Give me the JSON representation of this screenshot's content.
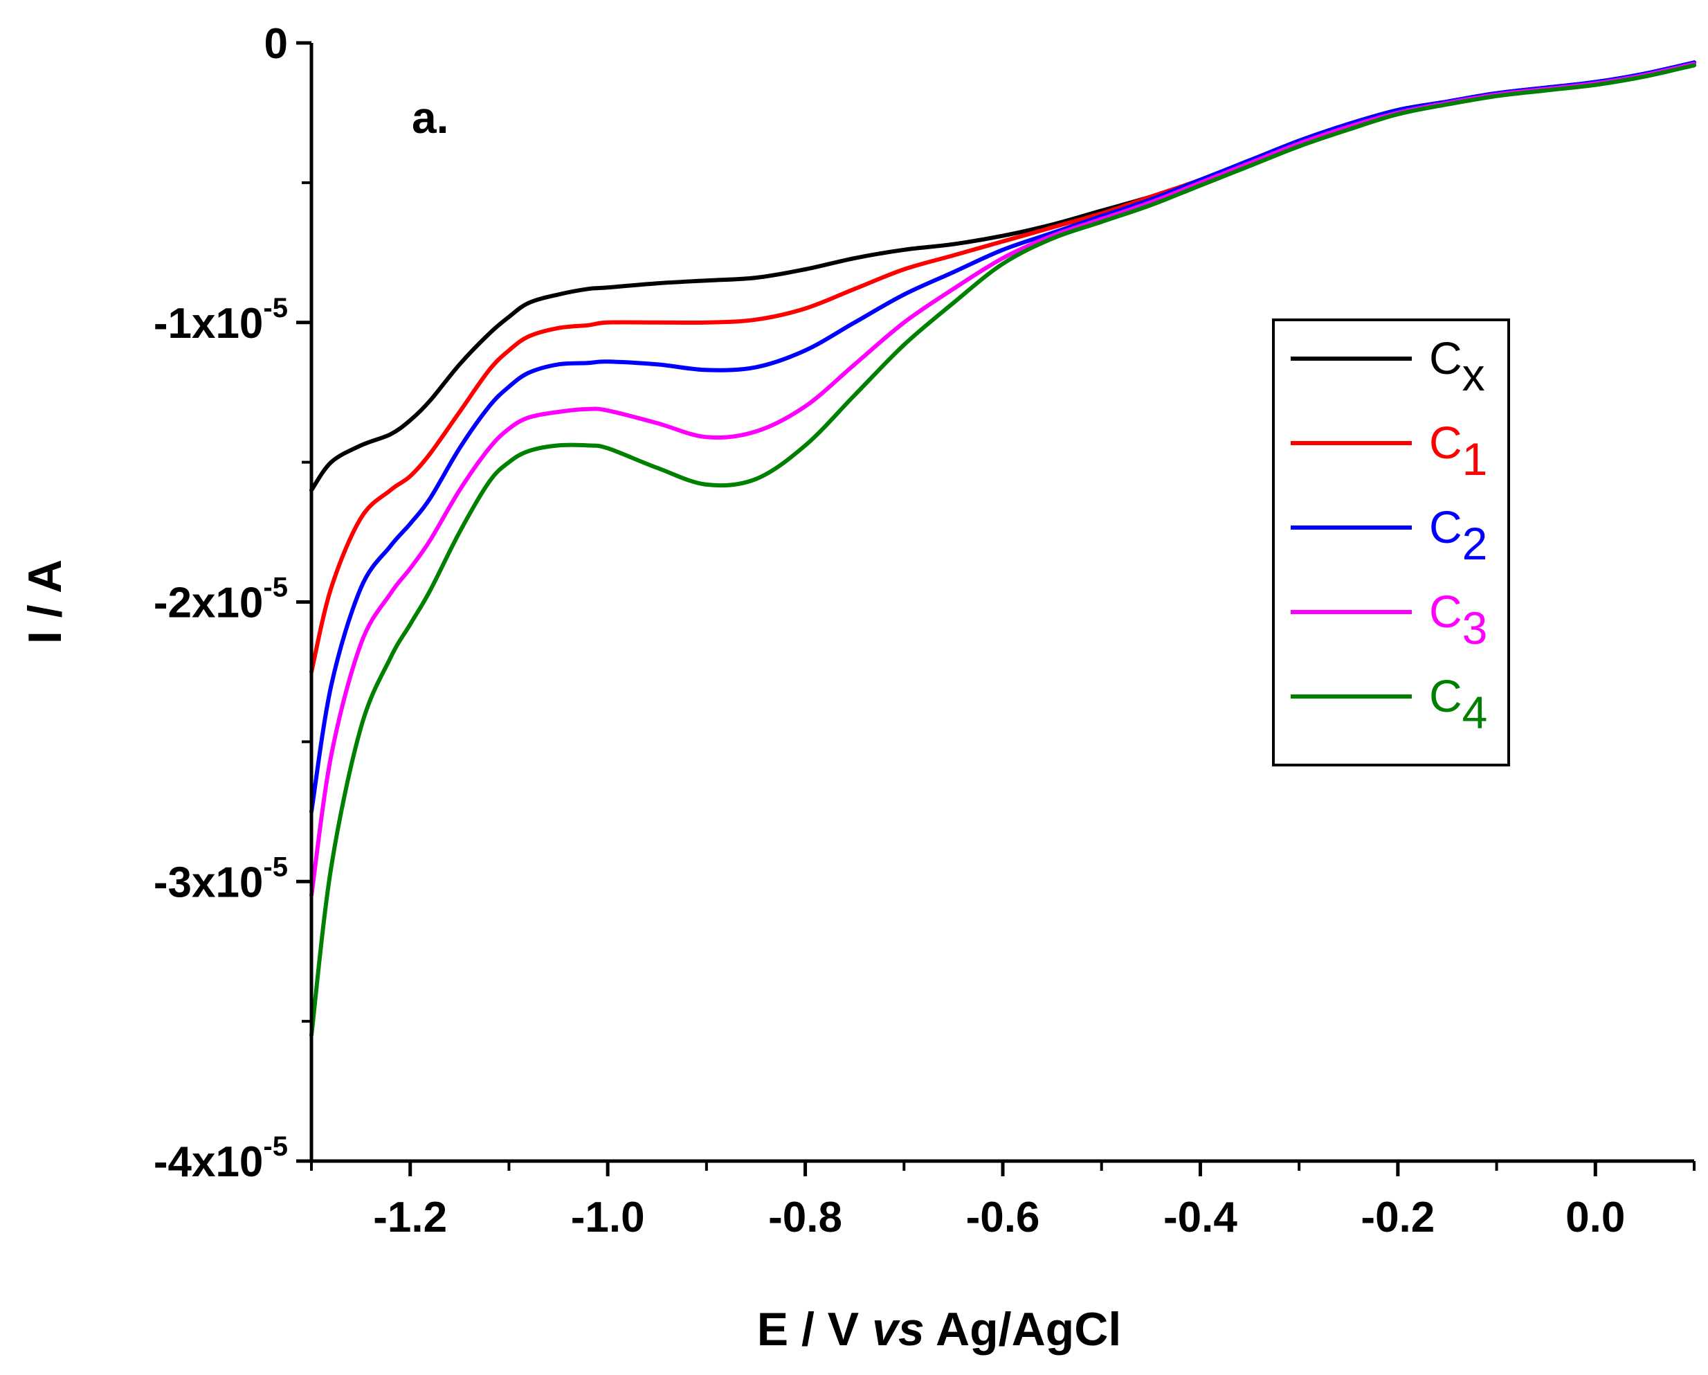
{
  "chart_data": {
    "type": "line",
    "panel_label": "a.",
    "xlabel": {
      "main": "E / V ",
      "italic": "vs",
      "rest": " Ag/AgCl"
    },
    "ylabel": "I / A",
    "xlim": [
      -1.3,
      0.1
    ],
    "ylim": [
      -4e-05,
      0
    ],
    "x_ticks": [
      {
        "value": -1.2,
        "label": "-1.2"
      },
      {
        "value": -1.0,
        "label": "-1.0"
      },
      {
        "value": -0.8,
        "label": "-0.8"
      },
      {
        "value": -0.6,
        "label": "-0.6"
      },
      {
        "value": -0.4,
        "label": "-0.4"
      },
      {
        "value": -0.2,
        "label": "-0.2"
      },
      {
        "value": 0.0,
        "label": "0.0"
      }
    ],
    "x_minor_ticks": [
      -1.3,
      -1.1,
      -0.9,
      -0.7,
      -0.5,
      -0.3,
      -0.1,
      0.1
    ],
    "y_ticks": [
      {
        "value": 0,
        "mantissa": "0",
        "exp": ""
      },
      {
        "value": -1e-05,
        "mantissa": "-1x10",
        "exp": "-5"
      },
      {
        "value": -2e-05,
        "mantissa": "-2x10",
        "exp": "-5"
      },
      {
        "value": -3e-05,
        "mantissa": "-3x10",
        "exp": "-5"
      },
      {
        "value": -4e-05,
        "mantissa": "-4x10",
        "exp": "-5"
      }
    ],
    "y_minor_ticks": [
      -5e-06,
      -1.5e-05,
      -2.5e-05,
      -3.5e-05
    ],
    "legend_position": "right",
    "series": [
      {
        "name": "C",
        "sub": "x",
        "color": "#000000",
        "x": [
          -1.3,
          -1.28,
          -1.25,
          -1.22,
          -1.2,
          -1.18,
          -1.15,
          -1.12,
          -1.1,
          -1.08,
          -1.05,
          -1.02,
          -1.0,
          -0.95,
          -0.9,
          -0.85,
          -0.8,
          -0.75,
          -0.7,
          -0.65,
          -0.6,
          -0.55,
          -0.5,
          -0.45,
          -0.4,
          -0.35,
          -0.3,
          -0.25,
          -0.2,
          -0.15,
          -0.1,
          -0.05,
          0.0,
          0.05,
          0.1
        ],
        "y": [
          -1.6e-05,
          -1.5e-05,
          -1.44e-05,
          -1.4e-05,
          -1.35e-05,
          -1.28e-05,
          -1.15e-05,
          -1.04e-05,
          -9.8e-06,
          -9.3e-06,
          -9e-06,
          -8.8e-06,
          -8.75e-06,
          -8.6e-06,
          -8.5e-06,
          -8.4e-06,
          -8.1e-06,
          -7.7e-06,
          -7.4e-06,
          -7.2e-06,
          -6.9e-06,
          -6.5e-06,
          -6e-06,
          -5.5e-06,
          -4.9e-06,
          -4.2e-06,
          -3.5e-06,
          -2.9e-06,
          -2.4e-06,
          -2.1e-06,
          -1.8e-06,
          -1.6e-06,
          -1.4e-06,
          -1.1e-06,
          -7e-07
        ]
      },
      {
        "name": "C",
        "sub": "1",
        "color": "#ff0000",
        "x": [
          -1.3,
          -1.28,
          -1.25,
          -1.22,
          -1.2,
          -1.18,
          -1.15,
          -1.12,
          -1.1,
          -1.08,
          -1.05,
          -1.02,
          -1.0,
          -0.95,
          -0.9,
          -0.85,
          -0.8,
          -0.75,
          -0.7,
          -0.65,
          -0.6,
          -0.55,
          -0.5,
          -0.45,
          -0.4,
          -0.35,
          -0.3,
          -0.25,
          -0.2,
          -0.15,
          -0.1,
          -0.05,
          0.0,
          0.05,
          0.1
        ],
        "y": [
          -2.25e-05,
          -1.95e-05,
          -1.7e-05,
          -1.6e-05,
          -1.55e-05,
          -1.47e-05,
          -1.32e-05,
          -1.17e-05,
          -1.1e-05,
          -1.05e-05,
          -1.02e-05,
          -1.01e-05,
          -1e-05,
          -1e-05,
          -1e-05,
          -9.9e-06,
          -9.5e-06,
          -8.8e-06,
          -8.1e-06,
          -7.6e-06,
          -7.1e-06,
          -6.6e-06,
          -6.1e-06,
          -5.5e-06,
          -4.9e-06,
          -4.2e-06,
          -3.5e-06,
          -2.9e-06,
          -2.4e-06,
          -2.1e-06,
          -1.8e-06,
          -1.6e-06,
          -1.4e-06,
          -1.1e-06,
          -7e-07
        ]
      },
      {
        "name": "C",
        "sub": "2",
        "color": "#0000ff",
        "x": [
          -1.3,
          -1.28,
          -1.25,
          -1.22,
          -1.2,
          -1.18,
          -1.15,
          -1.12,
          -1.1,
          -1.08,
          -1.05,
          -1.02,
          -1.0,
          -0.95,
          -0.9,
          -0.85,
          -0.8,
          -0.75,
          -0.7,
          -0.65,
          -0.6,
          -0.55,
          -0.5,
          -0.45,
          -0.4,
          -0.35,
          -0.3,
          -0.25,
          -0.2,
          -0.15,
          -0.1,
          -0.05,
          0.0,
          0.05,
          0.1
        ],
        "y": [
          -2.75e-05,
          -2.3e-05,
          -1.95e-05,
          -1.8e-05,
          -1.72e-05,
          -1.63e-05,
          -1.45e-05,
          -1.3e-05,
          -1.23e-05,
          -1.18e-05,
          -1.15e-05,
          -1.145e-05,
          -1.14e-05,
          -1.15e-05,
          -1.17e-05,
          -1.16e-05,
          -1.1e-05,
          -1e-05,
          -9e-06,
          -8.2e-06,
          -7.4e-06,
          -6.8e-06,
          -6.2e-06,
          -5.6e-06,
          -4.9e-06,
          -4.2e-06,
          -3.5e-06,
          -2.9e-06,
          -2.4e-06,
          -2.1e-06,
          -1.8e-06,
          -1.6e-06,
          -1.4e-06,
          -1.1e-06,
          -7e-07
        ]
      },
      {
        "name": "C",
        "sub": "3",
        "color": "#ff00ff",
        "x": [
          -1.3,
          -1.28,
          -1.25,
          -1.22,
          -1.2,
          -1.18,
          -1.15,
          -1.12,
          -1.1,
          -1.08,
          -1.05,
          -1.02,
          -1.0,
          -0.95,
          -0.9,
          -0.85,
          -0.8,
          -0.75,
          -0.7,
          -0.65,
          -0.6,
          -0.55,
          -0.5,
          -0.45,
          -0.4,
          -0.35,
          -0.3,
          -0.25,
          -0.2,
          -0.15,
          -0.1,
          -0.05,
          0.0,
          0.05,
          0.1
        ],
        "y": [
          -3.05e-05,
          -2.55e-05,
          -2.15e-05,
          -1.97e-05,
          -1.88e-05,
          -1.78e-05,
          -1.6e-05,
          -1.45e-05,
          -1.38e-05,
          -1.34e-05,
          -1.32e-05,
          -1.31e-05,
          -1.315e-05,
          -1.36e-05,
          -1.41e-05,
          -1.39e-05,
          -1.3e-05,
          -1.15e-05,
          -1e-05,
          -8.8e-06,
          -7.7e-06,
          -6.9e-06,
          -6.3e-06,
          -5.7e-06,
          -5e-06,
          -4.3e-06,
          -3.6e-06,
          -3e-06,
          -2.5e-06,
          -2.15e-06,
          -1.85e-06,
          -1.65e-06,
          -1.45e-06,
          -1.15e-06,
          -7.5e-07
        ]
      },
      {
        "name": "C",
        "sub": "4",
        "color": "#008000",
        "x": [
          -1.3,
          -1.28,
          -1.25,
          -1.22,
          -1.2,
          -1.18,
          -1.15,
          -1.12,
          -1.1,
          -1.08,
          -1.05,
          -1.02,
          -1.0,
          -0.95,
          -0.9,
          -0.85,
          -0.8,
          -0.75,
          -0.7,
          -0.65,
          -0.6,
          -0.55,
          -0.5,
          -0.45,
          -0.4,
          -0.35,
          -0.3,
          -0.25,
          -0.2,
          -0.15,
          -0.1,
          -0.05,
          0.0,
          0.05,
          0.1
        ],
        "y": [
          -3.55e-05,
          -2.95e-05,
          -2.45e-05,
          -2.2e-05,
          -2.08e-05,
          -1.96e-05,
          -1.75e-05,
          -1.57e-05,
          -1.5e-05,
          -1.46e-05,
          -1.44e-05,
          -1.44e-05,
          -1.45e-05,
          -1.52e-05,
          -1.58e-05,
          -1.56e-05,
          -1.44e-05,
          -1.26e-05,
          -1.08e-05,
          -9.3e-06,
          -7.9e-06,
          -7e-06,
          -6.4e-06,
          -5.8e-06,
          -5.1e-06,
          -4.4e-06,
          -3.7e-06,
          -3.1e-06,
          -2.55e-06,
          -2.2e-06,
          -1.9e-06,
          -1.7e-06,
          -1.5e-06,
          -1.2e-06,
          -8e-07
        ]
      }
    ]
  }
}
